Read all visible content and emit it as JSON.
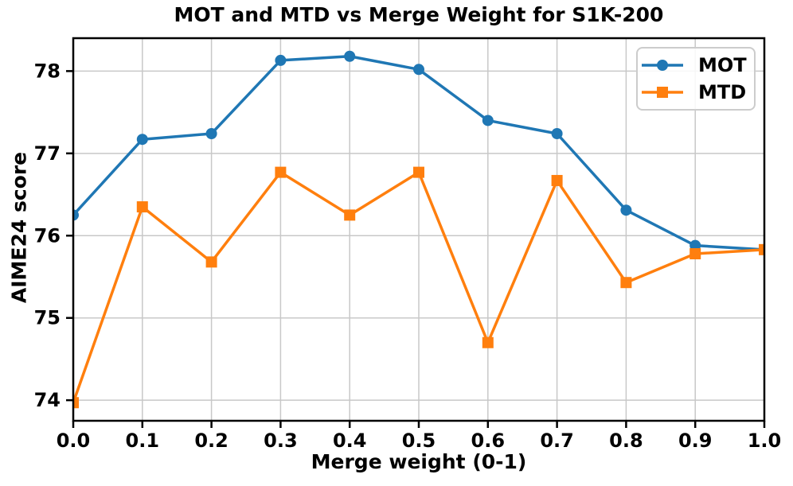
{
  "chart_data": {
    "type": "line",
    "title": "MOT and MTD vs Merge Weight for S1K-200",
    "xlabel": "Merge weight (0-1)",
    "ylabel": "AIME24 score",
    "x": [
      0.0,
      0.1,
      0.2,
      0.3,
      0.4,
      0.5,
      0.6,
      0.7,
      0.8,
      0.9,
      1.0
    ],
    "series": [
      {
        "name": "MOT",
        "marker": "circle",
        "color": "#1f77b4",
        "values": [
          76.25,
          77.17,
          77.24,
          78.13,
          78.18,
          78.02,
          77.4,
          77.24,
          76.31,
          75.88,
          75.83
        ]
      },
      {
        "name": "MTD",
        "marker": "square",
        "color": "#ff7f0e",
        "values": [
          73.97,
          76.35,
          75.68,
          76.77,
          76.25,
          76.77,
          74.7,
          76.67,
          75.43,
          75.78,
          75.83
        ]
      }
    ],
    "xlim": [
      0.0,
      1.0
    ],
    "ylim": [
      73.75,
      78.4
    ],
    "x_ticks": [
      0.0,
      0.1,
      0.2,
      0.3,
      0.4,
      0.5,
      0.6,
      0.7,
      0.8,
      0.9,
      1.0
    ],
    "x_tick_labels": [
      "0.0",
      "0.1",
      "0.2",
      "0.3",
      "0.4",
      "0.5",
      "0.6",
      "0.7",
      "0.8",
      "0.9",
      "1.0"
    ],
    "y_ticks": [
      74,
      75,
      76,
      77,
      78
    ],
    "y_tick_labels": [
      "74",
      "75",
      "76",
      "77",
      "78"
    ],
    "grid": true,
    "grid_color": "#c8c8c8",
    "axis_color": "#000000",
    "legend": {
      "position": "upper right",
      "entries": [
        "MOT",
        "MTD"
      ]
    }
  }
}
